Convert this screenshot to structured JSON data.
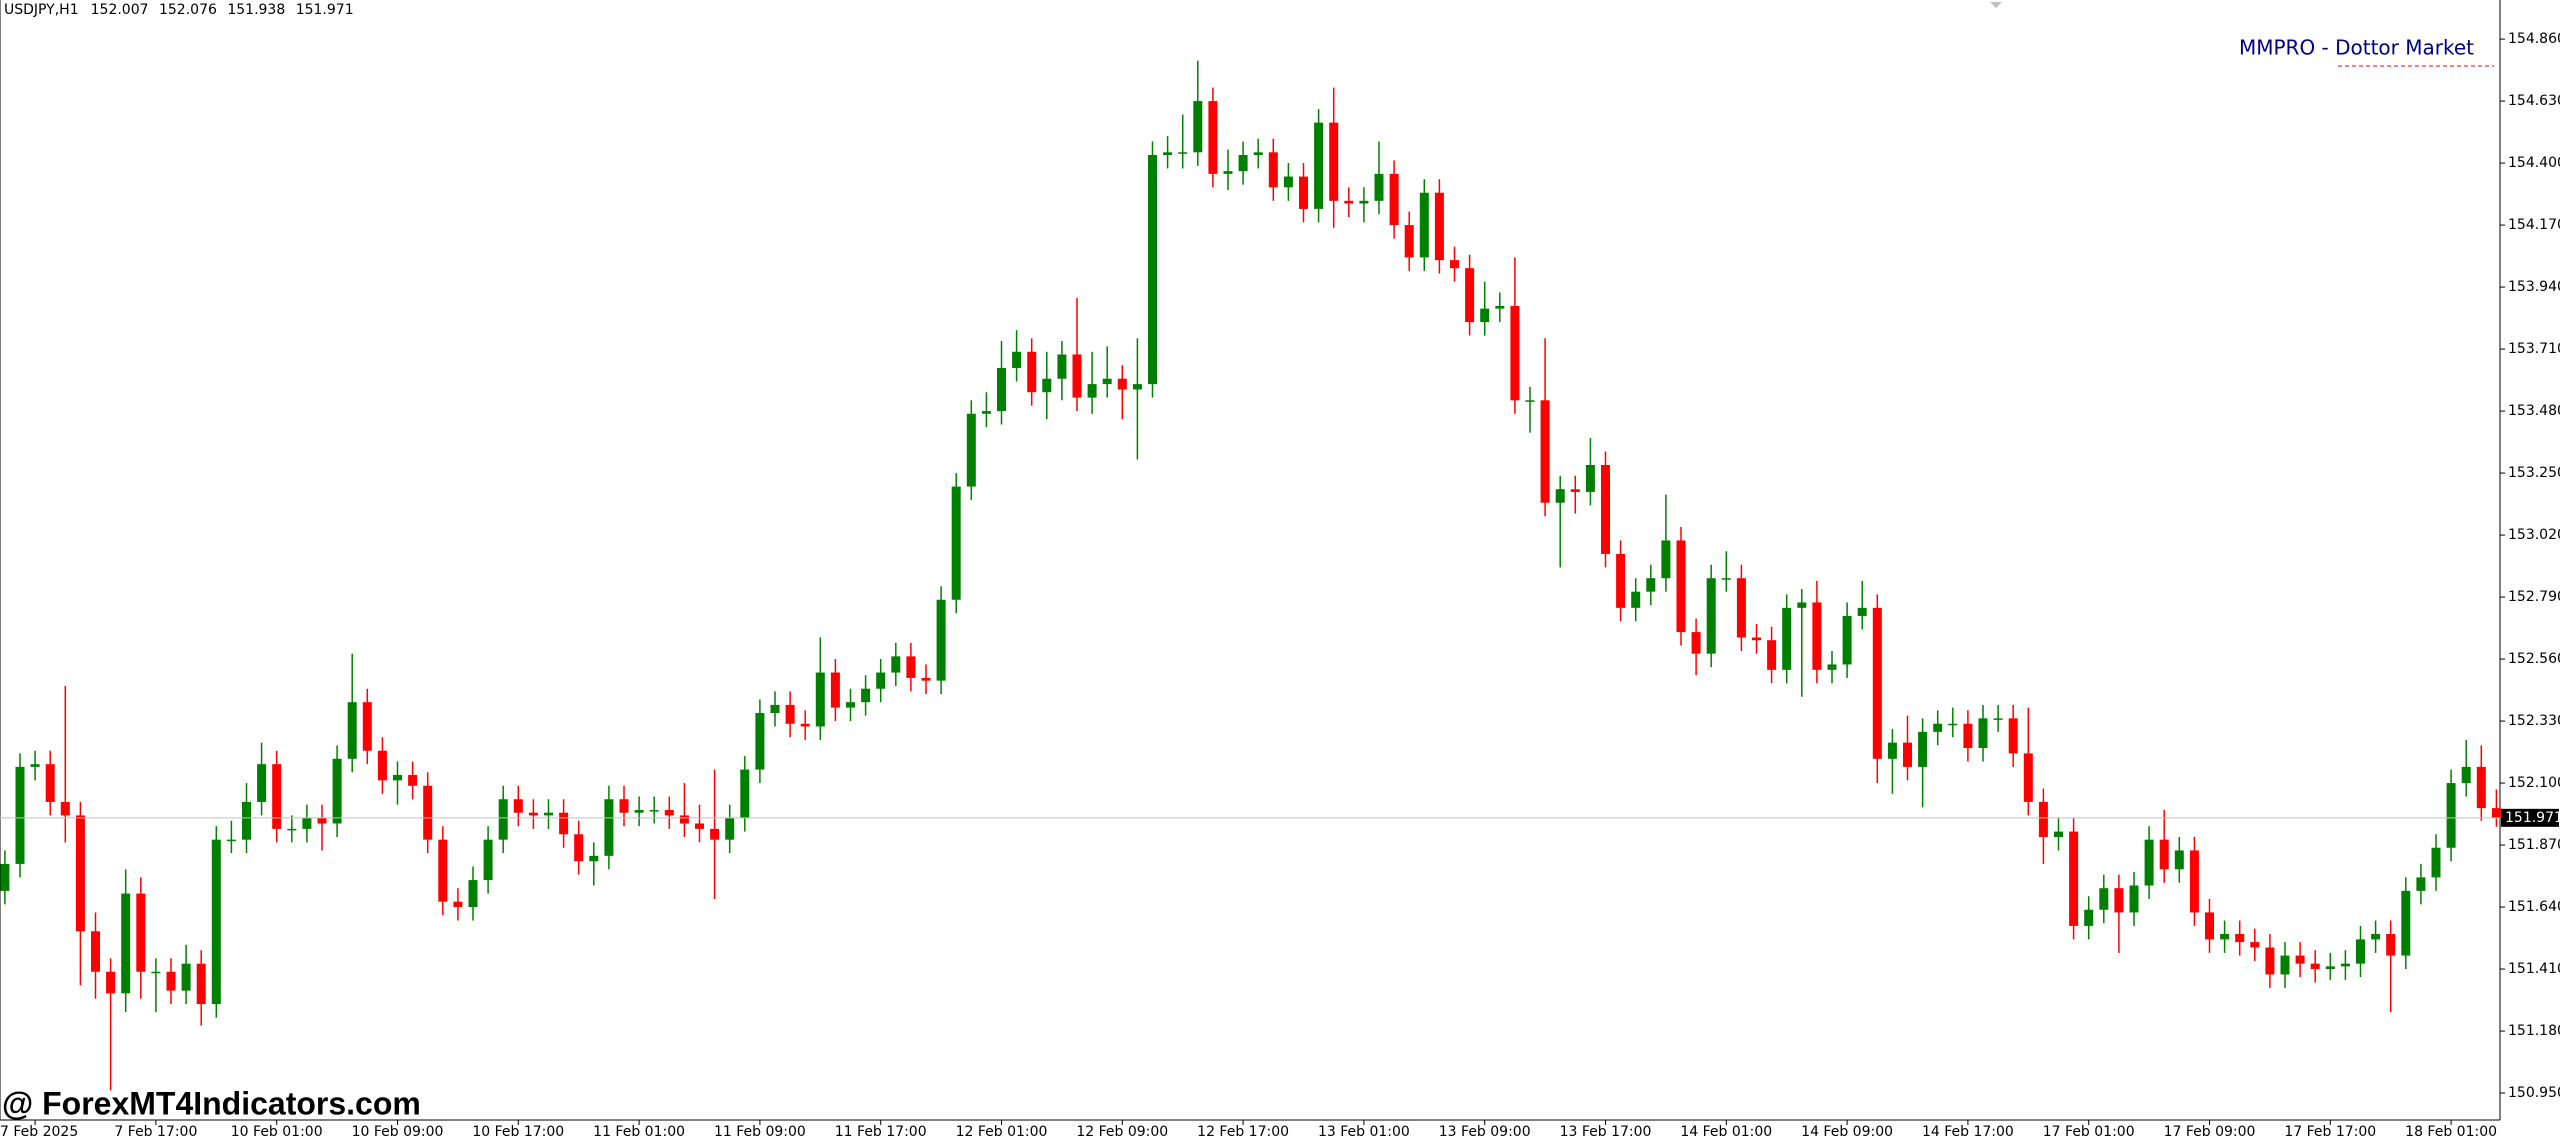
{
  "chart_data": {
    "type": "candlestick",
    "symbol": "USDJPY,H1",
    "annotations": [
      "MMPRO - Dottor Market",
      "@ ForexMT4Indicators.com"
    ],
    "up_color": "#008000",
    "down_color": "#ff0000",
    "grid": false,
    "ylim": [
      150.85,
      155.005
    ],
    "yticks": [
      {
        "value": 154.86,
        "label": "154.860"
      },
      {
        "value": 154.63,
        "label": "154.630"
      },
      {
        "value": 154.4,
        "label": "154.400"
      },
      {
        "value": 154.17,
        "label": "154.170"
      },
      {
        "value": 153.94,
        "label": "153.940"
      },
      {
        "value": 153.71,
        "label": "153.710"
      },
      {
        "value": 153.48,
        "label": "153.480"
      },
      {
        "value": 153.25,
        "label": "153.250"
      },
      {
        "value": 153.02,
        "label": "153.020"
      },
      {
        "value": 152.79,
        "label": "152.790"
      },
      {
        "value": 152.56,
        "label": "152.560"
      },
      {
        "value": 152.33,
        "label": "152.330"
      },
      {
        "value": 152.1,
        "label": "152.100"
      },
      {
        "value": 151.87,
        "label": "151.870"
      },
      {
        "value": 151.64,
        "label": "151.640"
      },
      {
        "value": 151.41,
        "label": "151.410"
      },
      {
        "value": 151.18,
        "label": "151.180"
      },
      {
        "value": 150.95,
        "label": "150.950"
      }
    ],
    "categories": [
      null,
      null,
      "7 Feb 2025",
      null,
      null,
      null,
      null,
      null,
      null,
      null,
      "7 Feb 17:00",
      null,
      null,
      null,
      null,
      null,
      null,
      null,
      "10 Feb 01:00",
      null,
      null,
      null,
      null,
      null,
      null,
      null,
      "10 Feb 09:00",
      null,
      null,
      null,
      null,
      null,
      null,
      null,
      "10 Feb 17:00",
      null,
      null,
      null,
      null,
      null,
      null,
      null,
      "11 Feb 01:00",
      null,
      null,
      null,
      null,
      null,
      null,
      null,
      "11 Feb 09:00",
      null,
      null,
      null,
      null,
      null,
      null,
      null,
      "11 Feb 17:00",
      null,
      null,
      null,
      null,
      null,
      null,
      null,
      "12 Feb 01:00",
      null,
      null,
      null,
      null,
      null,
      null,
      null,
      "12 Feb 09:00",
      null,
      null,
      null,
      null,
      null,
      null,
      null,
      "12 Feb 17:00",
      null,
      null,
      null,
      null,
      null,
      null,
      null,
      "13 Feb 01:00",
      null,
      null,
      null,
      null,
      null,
      null,
      null,
      "13 Feb 09:00",
      null,
      null,
      null,
      null,
      null,
      null,
      null,
      "13 Feb 17:00",
      null,
      null,
      null,
      null,
      null,
      null,
      null,
      "14 Feb 01:00",
      null,
      null,
      null,
      null,
      null,
      null,
      null,
      "14 Feb 09:00",
      null,
      null,
      null,
      null,
      null,
      null,
      null,
      "14 Feb 17:00",
      null,
      null,
      null,
      null,
      null,
      null,
      null,
      "17 Feb 01:00",
      null,
      null,
      null,
      null,
      null,
      null,
      null,
      "17 Feb 09:00",
      null,
      null,
      null,
      null,
      null,
      null,
      null,
      "17 Feb 17:00",
      null,
      null,
      null,
      null,
      null,
      null,
      null,
      "18 Feb 01:00",
      null,
      null,
      null
    ],
    "open": [
      151.7,
      151.8,
      152.16,
      152.17,
      152.03,
      151.98,
      151.55,
      151.4,
      151.32,
      151.69,
      151.4,
      151.4,
      151.33,
      151.43,
      151.28,
      151.89,
      151.89,
      152.03,
      152.17,
      151.93,
      151.93,
      151.97,
      151.95,
      152.19,
      152.4,
      152.22,
      152.11,
      152.13,
      152.09,
      151.89,
      151.66,
      151.64,
      151.74,
      151.89,
      152.04,
      151.99,
      151.98,
      151.99,
      151.91,
      151.81,
      151.83,
      152.04,
      151.99,
      152.0,
      152.0,
      151.98,
      151.95,
      151.93,
      151.89,
      151.97,
      152.15,
      152.36,
      152.39,
      152.32,
      152.31,
      152.51,
      152.38,
      152.4,
      152.45,
      152.51,
      152.57,
      152.49,
      152.48,
      152.78,
      153.2,
      153.47,
      153.48,
      153.64,
      153.7,
      153.55,
      153.6,
      153.69,
      153.53,
      153.58,
      153.6,
      153.56,
      153.58,
      154.43,
      154.44,
      154.44,
      154.63,
      154.36,
      154.37,
      154.43,
      154.44,
      154.31,
      154.35,
      154.23,
      154.55,
      154.26,
      154.25,
      154.26,
      154.36,
      154.17,
      154.05,
      154.29,
      154.04,
      154.01,
      153.81,
      153.86,
      153.87,
      153.52,
      153.52,
      153.14,
      153.19,
      153.18,
      153.28,
      152.95,
      152.75,
      152.81,
      152.86,
      153.0,
      152.66,
      152.58,
      152.86,
      152.86,
      152.64,
      152.63,
      152.52,
      152.75,
      152.77,
      152.52,
      152.54,
      152.72,
      152.75,
      152.19,
      152.25,
      152.16,
      152.29,
      152.32,
      152.32,
      152.23,
      152.34,
      152.34,
      152.21,
      152.03,
      151.9,
      151.92,
      151.57,
      151.63,
      151.71,
      151.62,
      151.72,
      151.89,
      151.78,
      151.85,
      151.62,
      151.52,
      151.54,
      151.51,
      151.49,
      151.39,
      151.46,
      151.43,
      151.41,
      151.42,
      151.43,
      151.52,
      151.54,
      151.46,
      151.7,
      151.75,
      151.86,
      152.1,
      152.16,
      152.007
    ],
    "high": [
      151.85,
      152.21,
      152.22,
      152.22,
      152.46,
      152.03,
      151.62,
      151.45,
      151.78,
      151.75,
      151.45,
      151.45,
      151.5,
      151.48,
      151.94,
      151.96,
      152.1,
      152.25,
      152.22,
      151.98,
      152.02,
      152.02,
      152.24,
      152.58,
      152.45,
      152.27,
      152.18,
      152.18,
      152.14,
      151.94,
      151.71,
      151.79,
      151.94,
      152.09,
      152.09,
      152.04,
      152.04,
      152.04,
      151.96,
      151.88,
      152.09,
      152.09,
      152.05,
      152.05,
      152.05,
      152.1,
      152.02,
      152.15,
      152.02,
      152.2,
      152.41,
      152.44,
      152.44,
      152.37,
      152.64,
      152.56,
      152.45,
      152.5,
      152.56,
      152.62,
      152.62,
      152.54,
      152.83,
      153.25,
      153.52,
      153.55,
      153.74,
      153.78,
      153.75,
      153.7,
      153.74,
      153.9,
      153.7,
      153.72,
      153.65,
      153.75,
      154.48,
      154.5,
      154.58,
      154.78,
      154.68,
      154.45,
      154.48,
      154.49,
      154.49,
      154.4,
      154.4,
      154.6,
      154.68,
      154.31,
      154.31,
      154.48,
      154.41,
      154.22,
      154.34,
      154.34,
      154.09,
      154.06,
      153.96,
      153.92,
      154.05,
      153.57,
      153.75,
      153.24,
      153.24,
      153.38,
      153.33,
      153.0,
      152.86,
      152.91,
      153.17,
      153.05,
      152.71,
      152.91,
      152.96,
      152.91,
      152.69,
      152.68,
      152.8,
      152.82,
      152.85,
      152.59,
      152.77,
      152.85,
      152.8,
      152.3,
      152.35,
      152.34,
      152.37,
      152.38,
      152.37,
      152.39,
      152.39,
      152.39,
      152.38,
      152.08,
      151.97,
      151.97,
      151.68,
      151.76,
      151.76,
      151.77,
      151.94,
      152.0,
      151.9,
      151.9,
      151.67,
      151.59,
      151.59,
      151.56,
      151.54,
      151.51,
      151.51,
      151.48,
      151.47,
      151.48,
      151.57,
      151.59,
      151.59,
      151.75,
      151.8,
      151.91,
      152.15,
      152.26,
      152.24,
      152.076
    ],
    "low": [
      151.65,
      151.75,
      152.11,
      151.98,
      151.88,
      151.35,
      151.3,
      150.96,
      151.25,
      151.3,
      151.25,
      151.28,
      151.28,
      151.2,
      151.23,
      151.84,
      151.84,
      151.98,
      151.88,
      151.88,
      151.88,
      151.85,
      151.9,
      152.14,
      152.17,
      152.06,
      152.02,
      152.04,
      151.84,
      151.61,
      151.59,
      151.59,
      151.69,
      151.84,
      151.94,
      151.93,
      151.93,
      151.86,
      151.76,
      151.72,
      151.78,
      151.94,
      151.94,
      151.95,
      151.93,
      151.9,
      151.88,
      151.67,
      151.84,
      151.92,
      152.1,
      152.31,
      152.27,
      152.26,
      152.26,
      152.33,
      152.33,
      152.35,
      152.4,
      152.46,
      152.44,
      152.43,
      152.43,
      152.73,
      153.15,
      153.42,
      153.43,
      153.59,
      153.5,
      153.45,
      153.52,
      153.48,
      153.47,
      153.53,
      153.45,
      153.3,
      153.53,
      154.38,
      154.38,
      154.39,
      154.31,
      154.3,
      154.32,
      154.38,
      154.26,
      154.26,
      154.18,
      154.18,
      154.16,
      154.2,
      154.18,
      154.21,
      154.12,
      154.0,
      154.0,
      153.99,
      153.96,
      153.76,
      153.76,
      153.81,
      153.47,
      153.4,
      153.09,
      152.9,
      153.1,
      153.13,
      152.9,
      152.7,
      152.7,
      152.76,
      152.81,
      152.61,
      152.5,
      152.53,
      152.81,
      152.59,
      152.58,
      152.47,
      152.47,
      152.42,
      152.47,
      152.47,
      152.49,
      152.67,
      152.1,
      152.06,
      152.11,
      152.01,
      152.24,
      152.27,
      152.18,
      152.18,
      152.29,
      152.16,
      151.98,
      151.8,
      151.85,
      151.52,
      151.52,
      151.58,
      151.47,
      151.57,
      151.67,
      151.73,
      151.73,
      151.57,
      151.47,
      151.47,
      151.46,
      151.44,
      151.34,
      151.34,
      151.38,
      151.36,
      151.37,
      151.37,
      151.38,
      151.47,
      151.25,
      151.41,
      151.65,
      151.7,
      151.81,
      152.05,
      151.96,
      151.938
    ],
    "close": [
      151.8,
      152.16,
      152.17,
      152.03,
      151.98,
      151.55,
      151.4,
      151.32,
      151.69,
      151.4,
      151.4,
      151.33,
      151.43,
      151.28,
      151.89,
      151.89,
      152.03,
      152.17,
      151.93,
      151.93,
      151.97,
      151.95,
      152.19,
      152.4,
      152.22,
      152.11,
      152.13,
      152.09,
      151.89,
      151.66,
      151.64,
      151.74,
      151.89,
      152.04,
      151.99,
      151.98,
      151.99,
      151.91,
      151.81,
      151.83,
      152.04,
      151.99,
      152.0,
      152.0,
      151.98,
      151.95,
      151.93,
      151.89,
      151.97,
      152.15,
      152.36,
      152.39,
      152.32,
      152.31,
      152.51,
      152.38,
      152.4,
      152.45,
      152.51,
      152.57,
      152.49,
      152.48,
      152.78,
      153.2,
      153.47,
      153.48,
      153.64,
      153.7,
      153.55,
      153.6,
      153.69,
      153.53,
      153.58,
      153.6,
      153.56,
      153.58,
      154.43,
      154.44,
      154.44,
      154.63,
      154.36,
      154.37,
      154.43,
      154.44,
      154.31,
      154.35,
      154.23,
      154.55,
      154.26,
      154.25,
      154.26,
      154.36,
      154.17,
      154.05,
      154.29,
      154.04,
      154.01,
      153.81,
      153.86,
      153.87,
      153.52,
      153.52,
      153.14,
      153.19,
      153.18,
      153.28,
      152.95,
      152.75,
      152.81,
      152.86,
      153.0,
      152.66,
      152.58,
      152.86,
      152.86,
      152.64,
      152.63,
      152.52,
      152.75,
      152.77,
      152.52,
      152.54,
      152.72,
      152.75,
      152.19,
      152.25,
      152.16,
      152.29,
      152.32,
      152.32,
      152.23,
      152.34,
      152.34,
      152.21,
      152.03,
      151.9,
      151.92,
      151.57,
      151.63,
      151.71,
      151.62,
      151.72,
      151.89,
      151.78,
      151.85,
      151.62,
      151.52,
      151.54,
      151.51,
      151.49,
      151.39,
      151.46,
      151.43,
      151.41,
      151.42,
      151.43,
      151.52,
      151.54,
      151.46,
      151.7,
      151.75,
      151.86,
      152.1,
      152.16,
      152.007,
      151.971
    ]
  }
}
